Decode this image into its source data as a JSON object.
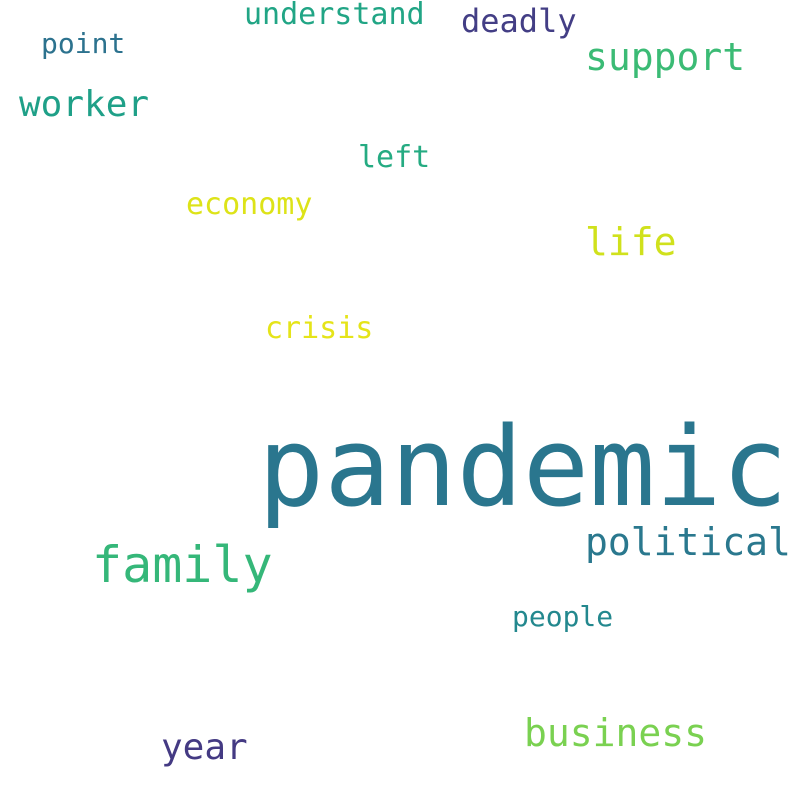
{
  "words": {
    "understand": {
      "text": "understand",
      "color": "#21a585"
    },
    "deadly": {
      "text": "deadly",
      "color": "#433e85"
    },
    "point": {
      "text": "point",
      "color": "#2c728e"
    },
    "support": {
      "text": "support",
      "color": "#3bbb75"
    },
    "worker": {
      "text": "worker",
      "color": "#1fa088"
    },
    "left": {
      "text": "left",
      "color": "#25ab82"
    },
    "economy": {
      "text": "economy",
      "color": "#dde318"
    },
    "life": {
      "text": "life",
      "color": "#d0e11c"
    },
    "crisis": {
      "text": "crisis",
      "color": "#e5e419"
    },
    "pandemic": {
      "text": "pandemic",
      "color": "#2a768e"
    },
    "family": {
      "text": "family",
      "color": "#35b779"
    },
    "political": {
      "text": "political",
      "color": "#2a788e"
    },
    "people": {
      "text": "people",
      "color": "#23888e"
    },
    "business": {
      "text": "business",
      "color": "#7ad151"
    },
    "year": {
      "text": "year",
      "color": "#443a83"
    }
  }
}
